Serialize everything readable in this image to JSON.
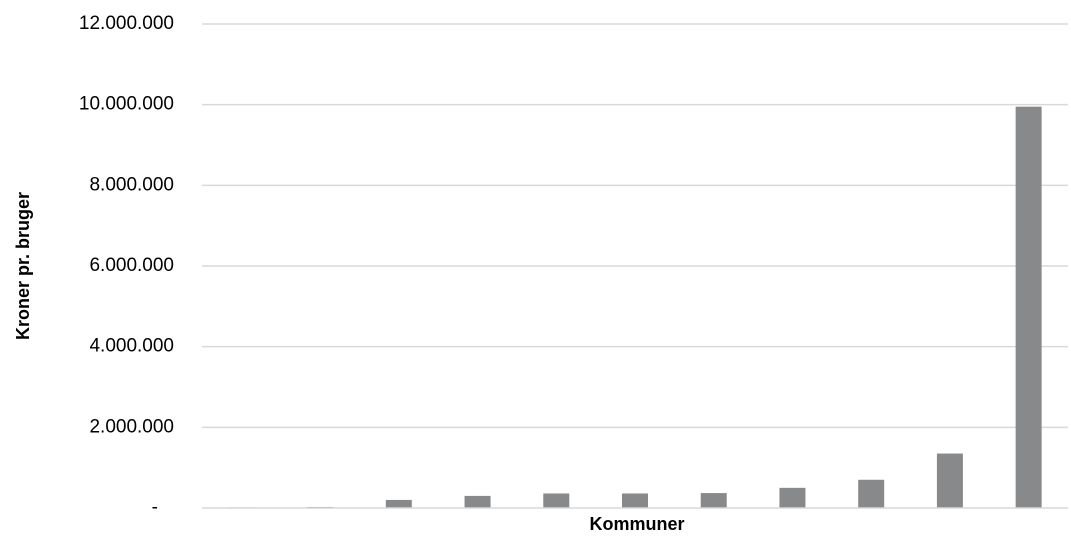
{
  "chart_data": {
    "type": "bar",
    "title": "",
    "xlabel": "Kommuner",
    "ylabel": "Kroner pr. bruger",
    "categories": [
      "",
      "",
      "",
      "",
      "",
      "",
      "",
      "",
      "",
      "",
      ""
    ],
    "values": [
      15000,
      25000,
      200000,
      300000,
      360000,
      360000,
      370000,
      500000,
      700000,
      1350000,
      9950000
    ],
    "ylim": [
      0,
      12000000
    ],
    "yticks": [
      0,
      2000000,
      4000000,
      6000000,
      8000000,
      10000000,
      12000000
    ],
    "ytick_labels": [
      "-",
      "2.000.000",
      "4.000.000",
      "6.000.000",
      "8.000.000",
      "10.000.000",
      "12.000.000"
    ],
    "grid": true,
    "legend": "none",
    "bar_color": "#87898b",
    "grid_color": "#d9d9d9"
  }
}
